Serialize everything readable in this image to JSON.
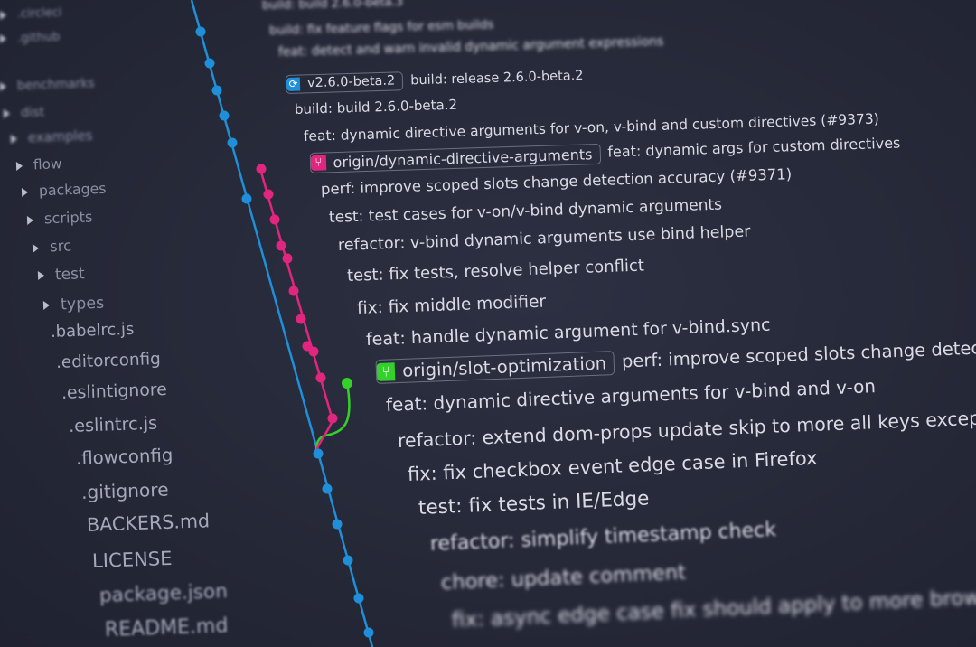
{
  "colors": {
    "background": "#272a3a",
    "main_branch": "#1e8fd8",
    "feature_branch": "#e0267f",
    "slot_branch": "#34d12a",
    "text": "#d9dbe4"
  },
  "sidebar": {
    "items": [
      {
        "label": ".circleci",
        "type": "folder"
      },
      {
        "label": ".github",
        "type": "folder"
      },
      {
        "label": "benchmarks",
        "type": "folder"
      },
      {
        "label": "dist",
        "type": "folder"
      },
      {
        "label": "examples",
        "type": "folder"
      },
      {
        "label": "flow",
        "type": "folder"
      },
      {
        "label": "packages",
        "type": "folder"
      },
      {
        "label": "scripts",
        "type": "folder"
      },
      {
        "label": "src",
        "type": "folder"
      },
      {
        "label": "test",
        "type": "folder"
      },
      {
        "label": "types",
        "type": "folder"
      },
      {
        "label": ".babelrc.js",
        "type": "file"
      },
      {
        "label": ".editorconfig",
        "type": "file"
      },
      {
        "label": ".eslintignore",
        "type": "file"
      },
      {
        "label": ".eslintrc.js",
        "type": "file"
      },
      {
        "label": ".flowconfig",
        "type": "file"
      },
      {
        "label": ".gitignore",
        "type": "file"
      },
      {
        "label": "BACKERS.md",
        "type": "file"
      },
      {
        "label": "LICENSE",
        "type": "file"
      },
      {
        "label": "package.json",
        "type": "file"
      },
      {
        "label": "README.md",
        "type": "file"
      }
    ]
  },
  "commits": [
    {
      "message": "build: build 2.6.0-beta.3"
    },
    {
      "message": "build: fix feature flags for esm builds"
    },
    {
      "message": "feat: detect and warn invalid dynamic argument expressions"
    },
    {
      "message": "build: release 2.6.0-beta.2",
      "tag": {
        "label": "v2.6.0-beta.2",
        "icon": "tag-icon",
        "color": "#1e8fd8"
      }
    },
    {
      "message": "build: build 2.6.0-beta.2"
    },
    {
      "message": "feat: dynamic directive arguments for v-on, v-bind and custom directives (#9373)"
    },
    {
      "message": "feat: dynamic args for custom directives",
      "tag": {
        "label": "origin/dynamic-directive-arguments",
        "icon": "branch-icon",
        "color": "#e0267f"
      }
    },
    {
      "message": "perf: improve scoped slots change detection accuracy (#9371)"
    },
    {
      "message": "test: test cases for v-on/v-bind dynamic arguments"
    },
    {
      "message": "refactor: v-bind dynamic arguments use bind helper"
    },
    {
      "message": "test: fix tests, resolve helper conflict"
    },
    {
      "message": "fix: fix middle modifier"
    },
    {
      "message": "feat: handle dynamic argument for v-bind.sync"
    },
    {
      "message": "perf: improve scoped slots change detection accuracy",
      "tag": {
        "label": "origin/slot-optimization",
        "icon": "branch-icon",
        "color": "#34d12a"
      }
    },
    {
      "message": "feat: dynamic directive arguments for v-bind and v-on"
    },
    {
      "message": "refactor: extend dom-props update skip to more all keys except value"
    },
    {
      "message": "fix: fix checkbox event edge case in Firefox"
    },
    {
      "message": "test: fix tests in IE/Edge"
    },
    {
      "message": "refactor: simplify timestamp check"
    },
    {
      "message": "chore: update comment"
    },
    {
      "message": "fix: async edge case fix should apply to more browsers"
    }
  ]
}
